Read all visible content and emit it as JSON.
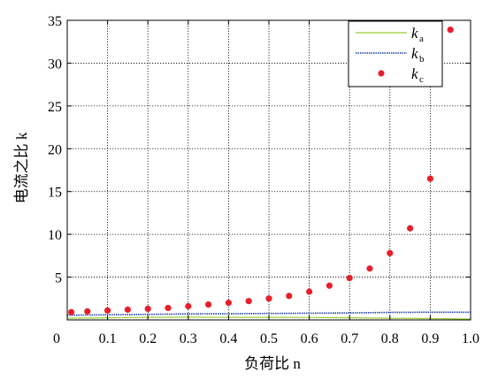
{
  "chart_data": {
    "type": "line",
    "xlabel": "负荷比 n",
    "ylabel": "电流之比 k",
    "xlim": [
      0,
      1.0
    ],
    "ylim": [
      0,
      35
    ],
    "x_ticks": [
      "0",
      "0.1",
      "0.2",
      "0.3",
      "0.4",
      "0.5",
      "0.6",
      "0.7",
      "0.8",
      "0.9",
      "1.0"
    ],
    "y_ticks": [
      "5",
      "10",
      "15",
      "20",
      "25",
      "30",
      "35"
    ],
    "grid": true,
    "legend_position": "top-right",
    "series": [
      {
        "name": "ka",
        "label_main": "k",
        "label_sub": "a",
        "style": "line",
        "color": "#9acd32",
        "x": [
          0.0,
          0.1,
          0.2,
          0.3,
          0.4,
          0.5,
          0.6,
          0.7,
          0.8,
          0.9,
          1.0
        ],
        "y": [
          0.2,
          0.25,
          0.3,
          0.32,
          0.3,
          0.3,
          0.28,
          0.25,
          0.2,
          0.15,
          0.1
        ]
      },
      {
        "name": "kb",
        "label_main": "k",
        "label_sub": "b",
        "style": "dotted",
        "color": "#1f3fa0",
        "x": [
          0.0,
          0.1,
          0.2,
          0.3,
          0.4,
          0.5,
          0.6,
          0.7,
          0.8,
          0.9,
          1.0
        ],
        "y": [
          0.55,
          0.6,
          0.65,
          0.7,
          0.72,
          0.75,
          0.78,
          0.82,
          0.88,
          0.9,
          0.9
        ]
      },
      {
        "name": "kc",
        "label_main": "k",
        "label_sub": "c",
        "style": "scatter",
        "color": "#e8202a",
        "x": [
          0.01,
          0.05,
          0.1,
          0.15,
          0.2,
          0.25,
          0.3,
          0.35,
          0.4,
          0.45,
          0.5,
          0.55,
          0.6,
          0.65,
          0.7,
          0.75,
          0.8,
          0.85,
          0.9,
          0.95
        ],
        "y": [
          0.9,
          1.0,
          1.1,
          1.2,
          1.3,
          1.4,
          1.6,
          1.8,
          2.0,
          2.2,
          2.5,
          2.8,
          3.3,
          4.0,
          4.9,
          6.0,
          7.8,
          10.7,
          16.5,
          33.9
        ]
      }
    ]
  }
}
